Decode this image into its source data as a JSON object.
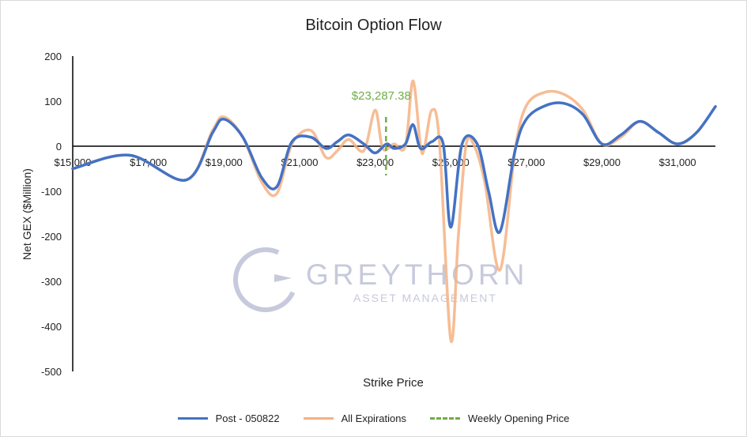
{
  "chart_data": {
    "type": "line",
    "title": "Bitcoin Option Flow",
    "xlabel": "Strike Price",
    "ylabel": "Net GEX ($Million)",
    "xlim": [
      15000,
      32000
    ],
    "ylim": [
      -500,
      200
    ],
    "y_ticks": [
      "200",
      "100",
      "0",
      "-100",
      "-200",
      "-300",
      "-400",
      "-500"
    ],
    "x_ticks": [
      "$15,000",
      "$17,000",
      "$19,000",
      "$21,000",
      "$23,000",
      "$25,000",
      "$27,000",
      "$29,000",
      "$31,000"
    ],
    "y_tick_values": [
      200,
      100,
      0,
      -100,
      -200,
      -300,
      -400,
      -500
    ],
    "x_tick_values": [
      15000,
      17000,
      19000,
      21000,
      23000,
      25000,
      27000,
      29000,
      31000
    ],
    "weekly_opening_price": 23287.38,
    "annotation": "$23,287.38",
    "series": [
      {
        "name": "Post - 050822",
        "color": "#4472c4",
        "points": [
          [
            15000,
            -50
          ],
          [
            16500,
            -20
          ],
          [
            18000,
            -75
          ],
          [
            18700,
            30
          ],
          [
            19000,
            60
          ],
          [
            19500,
            20
          ],
          [
            20000,
            -70
          ],
          [
            20400,
            -90
          ],
          [
            20800,
            10
          ],
          [
            21300,
            20
          ],
          [
            21700,
            -5
          ],
          [
            22000,
            10
          ],
          [
            22300,
            25
          ],
          [
            22700,
            5
          ],
          [
            23000,
            -15
          ],
          [
            23300,
            5
          ],
          [
            23500,
            -5
          ],
          [
            23800,
            5
          ],
          [
            24000,
            48
          ],
          [
            24200,
            -5
          ],
          [
            24500,
            10
          ],
          [
            24800,
            5
          ],
          [
            25000,
            -180
          ],
          [
            25300,
            5
          ],
          [
            25700,
            5
          ],
          [
            26000,
            -100
          ],
          [
            26300,
            -190
          ],
          [
            26700,
            -10
          ],
          [
            27000,
            60
          ],
          [
            27500,
            90
          ],
          [
            28000,
            95
          ],
          [
            28500,
            70
          ],
          [
            29000,
            5
          ],
          [
            29500,
            25
          ],
          [
            30000,
            55
          ],
          [
            30500,
            30
          ],
          [
            31000,
            5
          ],
          [
            31500,
            30
          ],
          [
            32000,
            88
          ]
        ]
      },
      {
        "name": "All Expirations",
        "color": "#f4b183",
        "points": [
          [
            15000,
            -50
          ],
          [
            16500,
            -20
          ],
          [
            18000,
            -75
          ],
          [
            18700,
            35
          ],
          [
            19000,
            65
          ],
          [
            19500,
            20
          ],
          [
            20000,
            -80
          ],
          [
            20400,
            -105
          ],
          [
            20800,
            5
          ],
          [
            21300,
            35
          ],
          [
            21700,
            -25
          ],
          [
            22000,
            -10
          ],
          [
            22300,
            15
          ],
          [
            22700,
            -10
          ],
          [
            23000,
            80
          ],
          [
            23200,
            -5
          ],
          [
            23500,
            5
          ],
          [
            23800,
            0
          ],
          [
            24000,
            145
          ],
          [
            24200,
            0
          ],
          [
            24300,
            -5
          ],
          [
            24500,
            80
          ],
          [
            24700,
            10
          ],
          [
            25000,
            -430
          ],
          [
            25200,
            -200
          ],
          [
            25400,
            0
          ],
          [
            25600,
            5
          ],
          [
            25900,
            -80
          ],
          [
            26300,
            -275
          ],
          [
            26700,
            -10
          ],
          [
            27000,
            90
          ],
          [
            27500,
            120
          ],
          [
            28000,
            115
          ],
          [
            28500,
            80
          ],
          [
            29000,
            5
          ],
          [
            29500,
            20
          ],
          [
            30000,
            55
          ],
          [
            30500,
            30
          ],
          [
            31000,
            5
          ],
          [
            31500,
            30
          ],
          [
            32000,
            88
          ]
        ]
      }
    ],
    "reference_line": {
      "name": "Weekly Opening Price",
      "x": 23287.38,
      "color": "#70ad47",
      "y_range": [
        -65,
        65
      ]
    },
    "legend": [
      "Post - 050822",
      "All Expirations",
      "Weekly Opening Price"
    ],
    "legend_position": "bottom",
    "grid": false
  },
  "watermark": {
    "brand": "GREYTHORN",
    "sub": "ASSET MANAGEMENT"
  }
}
